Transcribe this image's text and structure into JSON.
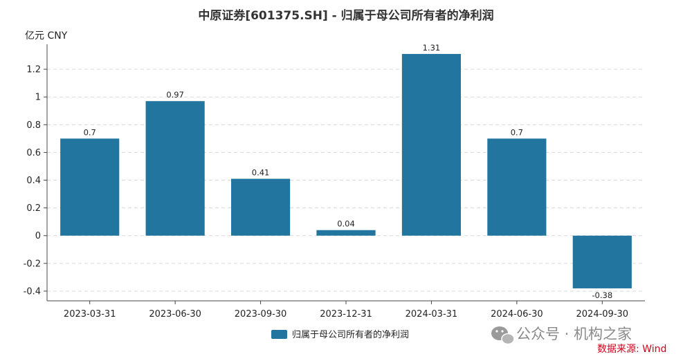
{
  "chart_data": {
    "type": "bar",
    "title": "中原证券[601375.SH] - 归属于母公司所有者的净利润",
    "unit_label": "亿元  CNY",
    "categories": [
      "2023-03-31",
      "2023-06-30",
      "2023-09-30",
      "2023-12-31",
      "2024-03-31",
      "2024-06-30",
      "2024-09-30"
    ],
    "series": [
      {
        "name": "归属于母公司所有者的净利润",
        "values": [
          0.7,
          0.97,
          0.41,
          0.04,
          1.31,
          0.7,
          -0.38
        ],
        "labels": [
          "0.7",
          "0.97",
          "0.41",
          "0.04",
          "1.31",
          "0.7",
          "-0.38"
        ],
        "color": "#21759f"
      }
    ],
    "ylim": [
      -0.47,
      1.38
    ],
    "yticks": [
      -0.4,
      -0.2,
      0,
      0.2,
      0.4,
      0.6,
      0.8,
      1,
      1.2
    ],
    "ytick_labels": [
      "-0.4",
      "-0.2",
      "0",
      "0.2",
      "0.4",
      "0.6",
      "0.8",
      "1",
      "1.2"
    ],
    "grid": true,
    "legend_position": "bottom-center"
  },
  "watermark": {
    "text": "公众号 · 机构之家",
    "icon": "wechat-icon"
  },
  "source": "数据来源: Wind"
}
